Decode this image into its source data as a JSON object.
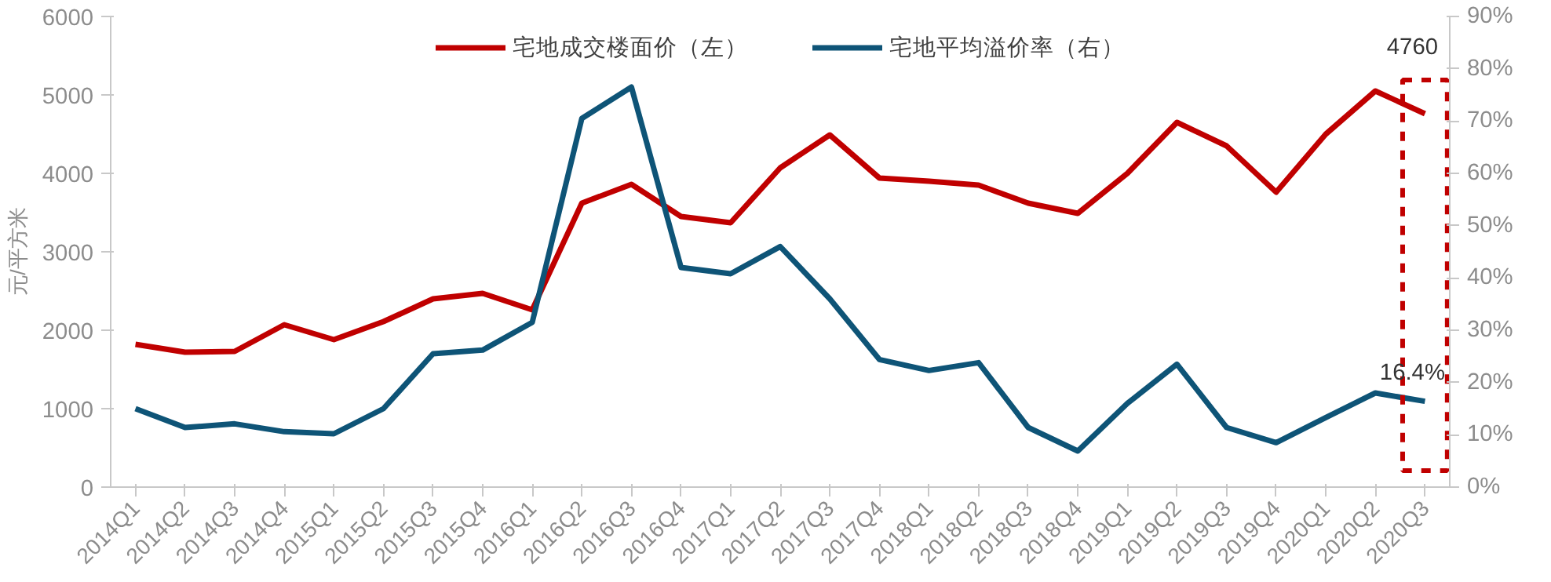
{
  "chart_data": {
    "type": "line",
    "ylabel": "元/平方米",
    "categories": [
      "2014Q1",
      "2014Q2",
      "2014Q3",
      "2014Q4",
      "2015Q1",
      "2015Q2",
      "2015Q3",
      "2015Q4",
      "2016Q1",
      "2016Q2",
      "2016Q3",
      "2016Q4",
      "2017Q1",
      "2017Q2",
      "2017Q3",
      "2017Q4",
      "2018Q1",
      "2018Q2",
      "2018Q3",
      "2018Q4",
      "2019Q1",
      "2019Q2",
      "2019Q3",
      "2019Q4",
      "2020Q1",
      "2020Q2",
      "2020Q3"
    ],
    "series": [
      {
        "name": "宅地成交楼面价（左）",
        "color": "#c00000",
        "values": [
          1820,
          1720,
          1730,
          2070,
          1880,
          2110,
          2400,
          2470,
          2260,
          3620,
          3860,
          3450,
          3370,
          4070,
          4490,
          3940,
          3900,
          3850,
          3620,
          3490,
          4000,
          4650,
          4350,
          3760,
          4500,
          5050,
          4760
        ],
        "value_labels": [
          null,
          null,
          null,
          null,
          null,
          null,
          null,
          null,
          null,
          null,
          null,
          null,
          null,
          null,
          null,
          null,
          null,
          null,
          null,
          null,
          null,
          null,
          null,
          null,
          null,
          null,
          "4760"
        ]
      },
      {
        "name": "宅地平均溢价率（右）",
        "color": "#0e5477",
        "axis": "y2",
        "values": [
          15,
          11.4,
          12.1,
          10.6,
          10.2,
          15,
          25.5,
          26.2,
          31.5,
          70.5,
          76.5,
          42,
          40.8,
          46,
          36,
          24.4,
          22.3,
          23.8,
          11.4,
          6.9,
          16,
          23.5,
          11.4,
          8.5,
          13.3,
          18,
          16.4
        ],
        "value_labels": [
          null,
          null,
          null,
          null,
          null,
          null,
          null,
          null,
          null,
          null,
          null,
          null,
          null,
          null,
          null,
          null,
          null,
          null,
          null,
          null,
          null,
          null,
          null,
          null,
          null,
          null,
          "16.4%"
        ]
      }
    ],
    "ylim": [
      0,
      6000
    ],
    "yticks": [
      0,
      1000,
      2000,
      3000,
      4000,
      5000,
      6000
    ],
    "y2lim": [
      0,
      90
    ],
    "y2ticks": [
      {
        "value": 0,
        "label": "0%"
      },
      {
        "value": 10,
        "label": "10%"
      },
      {
        "value": 20,
        "label": "20%"
      },
      {
        "value": 30,
        "label": "30%"
      },
      {
        "value": 40,
        "label": "40%"
      },
      {
        "value": 50,
        "label": "50%"
      },
      {
        "value": 60,
        "label": "60%"
      },
      {
        "value": 70,
        "label": "70%"
      },
      {
        "value": 80,
        "label": "80%"
      },
      {
        "value": 90,
        "label": "90%"
      }
    ],
    "grid": false,
    "legend": "top",
    "line_style": "solid",
    "marker": "none"
  }
}
